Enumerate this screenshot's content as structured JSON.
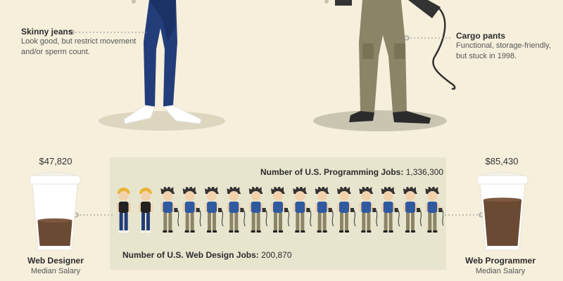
{
  "annotations": {
    "skinny_jeans": {
      "title": "Skinny jeans",
      "text_line1": "Look good, but restrict movement",
      "text_line2": "and/or sperm count."
    },
    "cargo_pants": {
      "title": "Cargo pants",
      "text_line1": "Functional, storage-friendly,",
      "text_line2": "but stuck in 1998."
    }
  },
  "salaries": {
    "designer": {
      "amount": "$47,820",
      "title": "Web Designer",
      "subtitle": "Median Salary",
      "fill_fraction": 0.44
    },
    "programmer": {
      "amount": "$85,430",
      "title": "Web Programmer",
      "subtitle": "Median Salary",
      "fill_fraction": 0.8
    }
  },
  "jobs": {
    "programming_label": "Number of U.S. Programming Jobs:",
    "programming_value": "1,336,300",
    "design_label": "Number of U.S. Web Design Jobs:",
    "design_value": "200,870",
    "designer_figures": 2,
    "programmer_figures": 13
  },
  "colors": {
    "background": "#f6efdc",
    "jeans": "#223d7a",
    "cargo": "#8b8466",
    "coffee": "#6b4a34",
    "panel": "#e8e5cf"
  },
  "icons": [
    "designer-figure-icon",
    "programmer-figure-icon",
    "coffee-cup-icon",
    "mouse-cable-icon"
  ]
}
